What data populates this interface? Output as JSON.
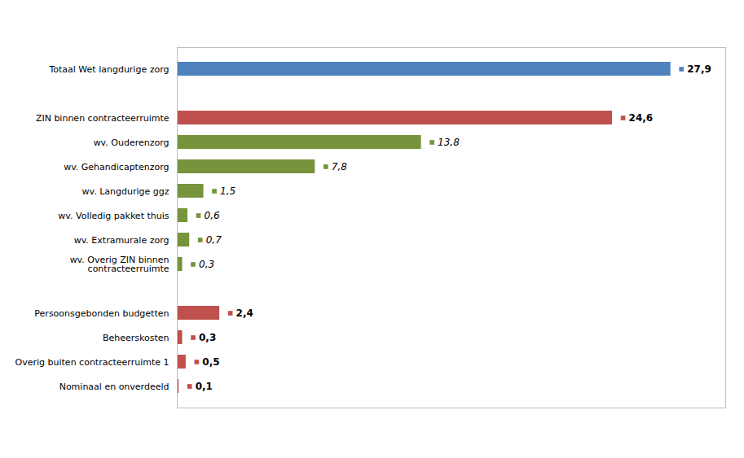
{
  "chart_data": {
    "type": "bar",
    "orientation": "horizontal",
    "categories": [
      "Totaal Wet langdurige zorg",
      null,
      "ZIN binnen contracteerruimte",
      "wv. Ouderenzorg",
      "wv. Gehandicaptenzorg",
      "wv. Langdurige ggz",
      "wv. Volledig pakket thuis",
      "wv. Extramurale zorg",
      "wv. Overig ZIN binnen\ncontracteerruimte",
      null,
      "Persoonsgebonden budgetten",
      "Beheerskosten",
      "Overig buiten contracteerruimte 1",
      "Nominaal en onverdeeld"
    ],
    "values": [
      27.9,
      null,
      24.6,
      13.8,
      7.8,
      1.5,
      0.6,
      0.7,
      0.3,
      null,
      2.4,
      0.3,
      0.5,
      0.1
    ],
    "value_labels": [
      "27,9",
      null,
      "24,6",
      "13,8",
      "7,8",
      "1,5",
      "0,6",
      "0,7",
      "0,3",
      null,
      "2,4",
      "0,3",
      "0,5",
      "0,1"
    ],
    "colors": [
      "#4f81bd",
      null,
      "#c0504d",
      "#77933c",
      "#77933c",
      "#77933c",
      "#77933c",
      "#77933c",
      "#77933c",
      null,
      "#c0504d",
      "#c0504d",
      "#c0504d",
      "#c0504d"
    ],
    "xlim": [
      0,
      31
    ],
    "xticks": [],
    "grid": false,
    "data_labels": true,
    "tick_labels": "y"
  }
}
